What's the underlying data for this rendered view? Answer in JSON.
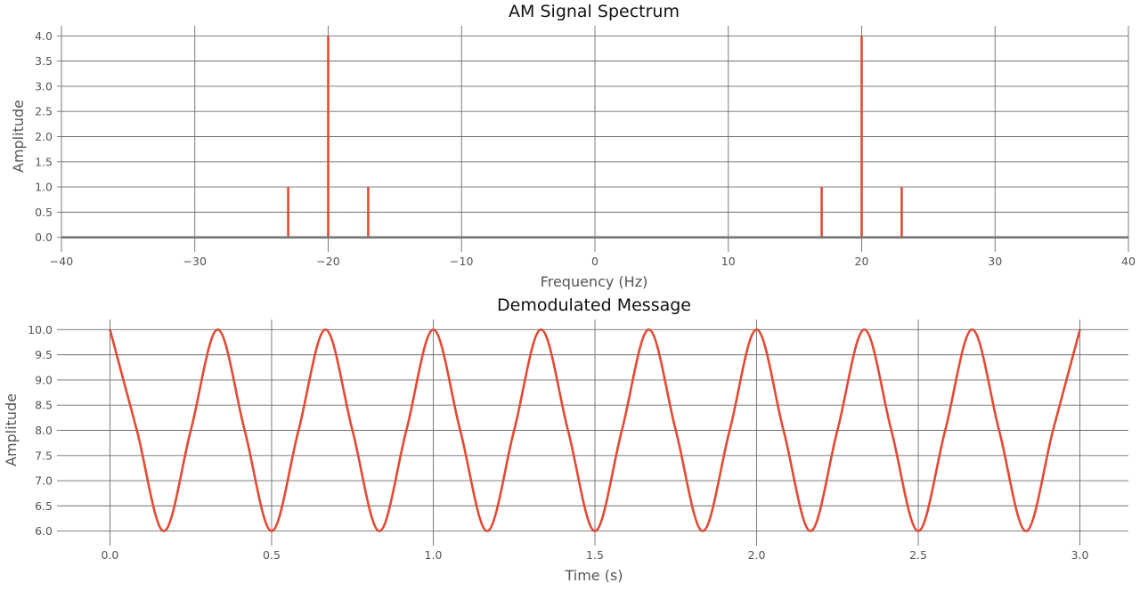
{
  "colors": {
    "series": "#e24a33",
    "baseline": "#777777",
    "grid": "#6e6e6e"
  },
  "chart_data": [
    {
      "type": "bar",
      "subtype": "stem",
      "title": "AM Signal Spectrum",
      "xlabel": "Frequency (Hz)",
      "ylabel": "Amplitude",
      "xlim": [
        -40,
        40
      ],
      "ylim": [
        -0.2,
        4.2
      ],
      "xticks": [
        -40,
        -30,
        -20,
        -10,
        0,
        10,
        20,
        30,
        40
      ],
      "xtick_labels": [
        "−40",
        "−30",
        "−20",
        "−10",
        "0",
        "10",
        "20",
        "30",
        "40"
      ],
      "yticks": [
        0.0,
        0.5,
        1.0,
        1.5,
        2.0,
        2.5,
        3.0,
        3.5,
        4.0
      ],
      "ytick_labels": [
        "0.0",
        "0.5",
        "1.0",
        "1.5",
        "2.0",
        "2.5",
        "3.0",
        "3.5",
        "4.0"
      ],
      "grid": true,
      "x": [
        -23,
        -20,
        -17,
        17,
        20,
        23
      ],
      "y": [
        1.0,
        4.0,
        1.0,
        1.0,
        4.0,
        1.0
      ]
    },
    {
      "type": "line",
      "title": "Demodulated Message",
      "xlabel": "Time (s)",
      "ylabel": "Amplitude",
      "xlim": [
        -0.15,
        3.15
      ],
      "ylim": [
        5.8,
        10.2
      ],
      "xticks": [
        0.0,
        0.5,
        1.0,
        1.5,
        2.0,
        2.5,
        3.0
      ],
      "xtick_labels": [
        "0.0",
        "0.5",
        "1.0",
        "1.5",
        "2.0",
        "2.5",
        "3.0"
      ],
      "yticks": [
        6.0,
        6.5,
        7.0,
        7.5,
        8.0,
        8.5,
        9.0,
        9.5,
        10.0
      ],
      "ytick_labels": [
        "6.0",
        "6.5",
        "7.0",
        "7.5",
        "8.0",
        "8.5",
        "9.0",
        "9.5",
        "10.0"
      ],
      "grid": true,
      "x": [
        0.0,
        0.0833,
        0.1667,
        0.25,
        0.3333,
        0.4167,
        0.5,
        0.5833,
        0.6667,
        0.75,
        0.8333,
        0.9167,
        1.0,
        1.0833,
        1.1667,
        1.25,
        1.3333,
        1.4167,
        1.5,
        1.5833,
        1.6667,
        1.75,
        1.8333,
        1.9167,
        2.0,
        2.0833,
        2.1667,
        2.25,
        2.3333,
        2.4167,
        2.5,
        2.5833,
        2.6667,
        2.75,
        2.8333,
        2.9167,
        3.0
      ],
      "y": [
        10.0,
        8.0,
        6.0,
        8.0,
        10.0,
        8.0,
        6.0,
        8.0,
        10.0,
        8.0,
        6.0,
        8.0,
        10.0,
        8.0,
        6.0,
        8.0,
        10.0,
        8.0,
        6.0,
        8.0,
        10.0,
        8.0,
        6.0,
        8.0,
        10.0,
        8.0,
        6.0,
        8.0,
        10.0,
        8.0,
        6.0,
        8.0,
        10.0,
        8.0,
        6.0,
        8.0,
        10.0
      ]
    }
  ]
}
